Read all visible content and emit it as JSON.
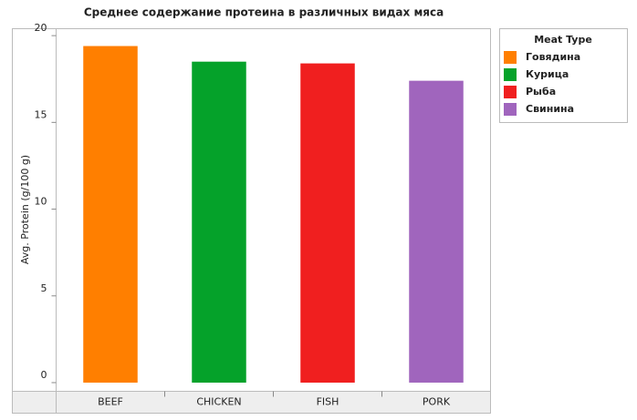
{
  "chart_data": {
    "type": "bar",
    "title": "Среднее содержание протеина в различных видах мяса",
    "y_label": "Avg. Protein (g/100 g)",
    "categories": [
      "BEEF",
      "CHICKEN",
      "FISH",
      "PORK"
    ],
    "values": [
      19.4,
      18.5,
      18.4,
      17.4
    ],
    "colors": [
      "#ff7f00",
      "#05a22a",
      "#f01f1f",
      "#a065bd"
    ],
    "ylim": [
      -0.5,
      20.4
    ],
    "yticks": [
      0,
      5,
      10,
      15,
      20
    ],
    "legend": {
      "title": "Meat Type",
      "labels": [
        "Говядина",
        "Курица",
        "Рыба",
        "Свинина"
      ],
      "position": "top-right"
    }
  }
}
